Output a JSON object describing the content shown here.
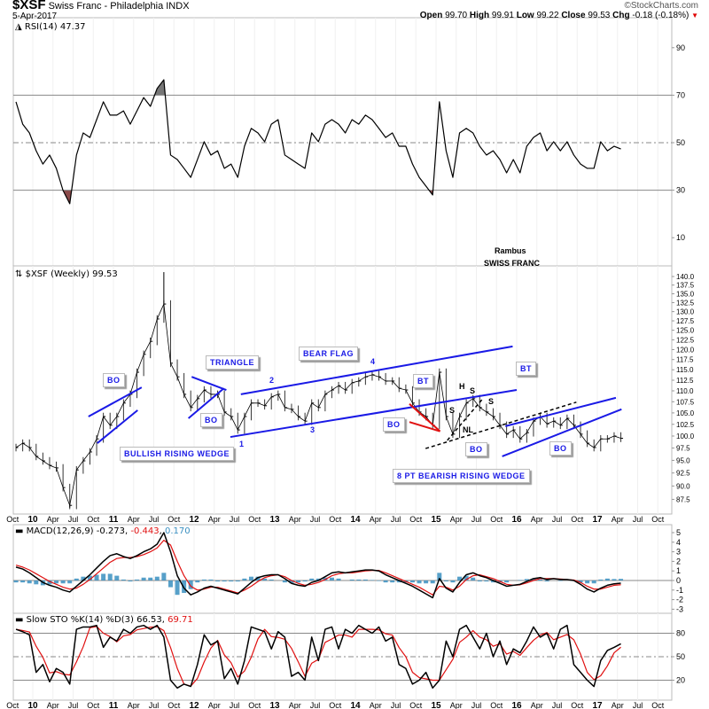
{
  "header": {
    "symbol": "$XSF",
    "name": "Swiss Franc - Philadelphia INDX",
    "date": "5-Apr-2017",
    "copyright": "©StockCharts.com",
    "open_label": "Open",
    "open": "99.70",
    "high_label": "High",
    "high": "99.91",
    "low_label": "Low",
    "low": "99.22",
    "close_label": "Close",
    "close": "99.53",
    "chg_label": "Chg",
    "chg": "-0.18 (-0.18%)",
    "down_color": "#e00000"
  },
  "annotations_text": {
    "author": "Rambus",
    "subject": "SWISS FRANC",
    "bo": "BO",
    "bt": "BT",
    "bullish_wedge": "BULLISH RISING WEDGE",
    "triangle": "TRIANGLE",
    "bear_flag": "BEAR FLAG",
    "bearish_wedge": "8 PT BEARISH RISING WEDGE",
    "p1": "1",
    "p2": "2",
    "p3": "3",
    "p4": "4",
    "h": "H",
    "s": "S",
    "nl": "NL"
  },
  "chart_data": {
    "type": "line",
    "start_month": "2009-10",
    "x_ticks": [
      {
        "label": "Oct",
        "date": "2009-10"
      },
      {
        "label": "10",
        "date": "2010-01"
      },
      {
        "label": "Apr",
        "date": "2010-04"
      },
      {
        "label": "Jul",
        "date": "2010-07"
      },
      {
        "label": "Oct",
        "date": "2010-10"
      },
      {
        "label": "11",
        "date": "2011-01"
      },
      {
        "label": "Apr",
        "date": "2011-04"
      },
      {
        "label": "Jul",
        "date": "2011-07"
      },
      {
        "label": "Oct",
        "date": "2011-10"
      },
      {
        "label": "12",
        "date": "2012-01"
      },
      {
        "label": "Apr",
        "date": "2012-04"
      },
      {
        "label": "Jul",
        "date": "2012-07"
      },
      {
        "label": "Oct",
        "date": "2012-10"
      },
      {
        "label": "13",
        "date": "2013-01"
      },
      {
        "label": "Apr",
        "date": "2013-04"
      },
      {
        "label": "Jul",
        "date": "2013-07"
      },
      {
        "label": "Oct",
        "date": "2013-10"
      },
      {
        "label": "14",
        "date": "2014-01"
      },
      {
        "label": "Apr",
        "date": "2014-04"
      },
      {
        "label": "Jul",
        "date": "2014-07"
      },
      {
        "label": "Oct",
        "date": "2014-10"
      },
      {
        "label": "15",
        "date": "2015-01"
      },
      {
        "label": "Apr",
        "date": "2015-04"
      },
      {
        "label": "Jul",
        "date": "2015-07"
      },
      {
        "label": "Oct",
        "date": "2015-10"
      },
      {
        "label": "16",
        "date": "2016-01"
      },
      {
        "label": "Apr",
        "date": "2016-04"
      },
      {
        "label": "Jul",
        "date": "2016-07"
      },
      {
        "label": "Oct",
        "date": "2016-10"
      },
      {
        "label": "17",
        "date": "2017-01"
      },
      {
        "label": "Apr",
        "date": "2017-04"
      },
      {
        "label": "Jul",
        "date": "2017-07"
      },
      {
        "label": "Oct",
        "date": "2017-10"
      }
    ],
    "rsi": {
      "legend": "RSI(14) 47.37",
      "y_ticks": [
        "90",
        "70",
        "50",
        "30",
        "10"
      ],
      "overbought": 70,
      "oversold": 30,
      "midline": 50,
      "values": [
        67.2,
        57.8,
        54.1,
        46.6,
        41,
        44.8,
        39.2,
        29.9,
        24.3,
        44.8,
        54.1,
        52.2,
        59.7,
        67.2,
        61.6,
        61.6,
        63.4,
        57.8,
        63.4,
        69,
        65.3,
        72.8,
        76.5,
        44.8,
        42.9,
        39.2,
        35.4,
        42.9,
        50.4,
        44.8,
        46.6,
        39.2,
        41,
        35.4,
        48.5,
        56,
        54.1,
        50.4,
        57.8,
        59.7,
        44.8,
        42.9,
        41,
        39.2,
        54.1,
        50.4,
        57.8,
        59.7,
        57.8,
        54.1,
        59.7,
        57.8,
        61.6,
        59.7,
        56,
        52.2,
        54.1,
        48.5,
        48.5,
        41,
        35.4,
        31.7,
        28,
        67.2,
        46.6,
        35.4,
        54.1,
        56,
        54.1,
        48.5,
        44.8,
        46.6,
        42.9,
        37.3,
        42.9,
        37.3,
        48.5,
        52.2,
        54.1,
        46.6,
        50.4,
        46.6,
        50.4,
        44.8,
        41,
        39.2,
        39.2,
        50.4,
        46.6,
        48.5,
        47.37
      ],
      "oversold_fill": "#8b4a4a",
      "overbought_fill": "#777777"
    },
    "price": {
      "legend": "$XSF (Weekly) 99.53",
      "scale": "log",
      "y_ticks": [
        "140.0",
        "137.5",
        "135.0",
        "132.5",
        "130.0",
        "127.5",
        "125.0",
        "122.5",
        "120.0",
        "117.5",
        "115.0",
        "112.5",
        "110.0",
        "107.5",
        "105.0",
        "102.5",
        "100.0",
        "97.5",
        "95.0",
        "92.5",
        "90.0",
        "87.5"
      ],
      "close": [
        97.6,
        98.5,
        97.6,
        95.8,
        94.9,
        94.0,
        93.5,
        89.7,
        86.4,
        93.1,
        94.9,
        96.7,
        99.4,
        104.2,
        102.3,
        104.2,
        107.2,
        109.2,
        114.4,
        118.8,
        122.1,
        128.0,
        132.1,
        116.6,
        113.3,
        109.2,
        106.2,
        108.2,
        110.2,
        109.2,
        109.2,
        105.2,
        104.2,
        101.3,
        104.2,
        107.2,
        107.2,
        106.6,
        108.6,
        109.2,
        106.2,
        105.8,
        104.2,
        103.2,
        107.2,
        106.2,
        109.2,
        110.2,
        111.2,
        110.2,
        111.9,
        112.3,
        113.3,
        113.8,
        113.3,
        112.3,
        112.3,
        110.6,
        110.2,
        107.2,
        105.2,
        104.2,
        102.3,
        114.4,
        104.2,
        100.4,
        104.2,
        107.2,
        108.2,
        106.2,
        105.2,
        104.2,
        102.3,
        100.4,
        101.3,
        99.4,
        100.7,
        103.2,
        104.2,
        102.6,
        103.2,
        102.3,
        103.8,
        102.3,
        100.4,
        98.5,
        97.6,
        99.4,
        99.4,
        100.0,
        99.53
      ],
      "period_high": 141.3,
      "period_low": 86.0,
      "trendlines": [
        {
          "color": "#1a1ae6",
          "style": "solid",
          "from": [
            2010.69,
            104.2
          ],
          "to": [
            2011.35,
            110.8
          ]
        },
        {
          "color": "#1a1ae6",
          "style": "solid",
          "from": [
            2010.8,
            98.5
          ],
          "to": [
            2011.3,
            105.6
          ]
        },
        {
          "color": "#1a1ae6",
          "style": "solid",
          "from": [
            2011.97,
            113.3
          ],
          "to": [
            2012.4,
            110.2
          ]
        },
        {
          "color": "#1a1ae6",
          "style": "solid",
          "from": [
            2011.93,
            103.8
          ],
          "to": [
            2012.37,
            110.6
          ]
        },
        {
          "color": "#1a1ae6",
          "style": "solid",
          "from": [
            2012.58,
            109.2
          ],
          "to": [
            2015.95,
            120.8
          ]
        },
        {
          "color": "#1a1ae6",
          "style": "solid",
          "from": [
            2012.45,
            99.8
          ],
          "to": [
            2016.0,
            110.2
          ]
        },
        {
          "color": "#e01010",
          "style": "solid",
          "from": [
            2014.67,
            107.0
          ],
          "to": [
            2015.05,
            101.0
          ]
        },
        {
          "color": "#e01010",
          "style": "solid",
          "from": [
            2014.67,
            103.0
          ],
          "to": [
            2015.05,
            101.0
          ]
        },
        {
          "color": "#000000",
          "style": "dashed",
          "from": [
            2014.87,
            97.4
          ],
          "to": [
            2016.74,
            107.4
          ]
        },
        {
          "color": "#000000",
          "style": "dashed",
          "from": [
            2015.14,
            99.1
          ],
          "to": [
            2015.58,
            108.2
          ]
        },
        {
          "color": "#1a1ae6",
          "style": "solid",
          "from": [
            2015.86,
            102.1
          ],
          "to": [
            2017.23,
            108.4
          ]
        },
        {
          "color": "#1a1ae6",
          "style": "solid",
          "from": [
            2015.82,
            95.8
          ],
          "to": [
            2017.3,
            105.8
          ]
        }
      ]
    },
    "macd": {
      "legend_name": "MACD(12,26,9)",
      "legend_macd": "-0.273",
      "legend_signal": "-0.443",
      "legend_hist": "0.170",
      "y_ticks": [
        "5",
        "4",
        "3",
        "2",
        "1",
        "0",
        "-1",
        "-2",
        "-3"
      ],
      "macd": [
        1.4,
        1.2,
        0.8,
        0.3,
        -0.2,
        -0.5,
        -0.7,
        -1.0,
        -1.2,
        -0.6,
        0.0,
        0.6,
        1.3,
        2.0,
        2.6,
        2.8,
        2.5,
        2.3,
        2.6,
        3.0,
        3.3,
        3.8,
        5.0,
        3.0,
        0.5,
        -0.8,
        -1.5,
        -1.2,
        -0.8,
        -0.6,
        -0.8,
        -1.0,
        -1.2,
        -1.4,
        -0.8,
        -0.2,
        0.3,
        0.5,
        0.6,
        0.6,
        0.2,
        -0.3,
        -0.5,
        -0.6,
        -0.2,
        0.0,
        0.4,
        0.8,
        0.9,
        0.8,
        0.9,
        1.0,
        1.1,
        1.1,
        1.0,
        0.6,
        0.3,
        0.0,
        -0.3,
        -0.6,
        -1.0,
        -1.4,
        -1.8,
        0.2,
        -0.8,
        -1.2,
        -0.2,
        0.6,
        0.8,
        0.5,
        0.3,
        0.0,
        -0.3,
        -0.6,
        -0.5,
        -0.4,
        -0.1,
        0.2,
        0.3,
        0.1,
        0.2,
        0.1,
        0.1,
        0.0,
        -0.4,
        -0.9,
        -1.2,
        -0.8,
        -0.5,
        -0.35,
        -0.273
      ],
      "signal": [
        1.6,
        1.4,
        1.1,
        0.7,
        0.3,
        -0.1,
        -0.4,
        -0.7,
        -0.9,
        -0.8,
        -0.4,
        0.1,
        0.7,
        1.3,
        1.9,
        2.3,
        2.4,
        2.4,
        2.5,
        2.7,
        3.0,
        3.4,
        4.2,
        3.7,
        2.0,
        0.5,
        -0.6,
        -1.0,
        -0.9,
        -0.7,
        -0.7,
        -0.9,
        -1.1,
        -1.3,
        -1.0,
        -0.6,
        -0.1,
        0.3,
        0.5,
        0.6,
        0.4,
        0.0,
        -0.3,
        -0.5,
        -0.4,
        -0.2,
        0.1,
        0.5,
        0.7,
        0.8,
        0.8,
        0.9,
        1.0,
        1.05,
        1.05,
        0.8,
        0.5,
        0.2,
        -0.1,
        -0.4,
        -0.7,
        -1.1,
        -1.5,
        -0.6,
        -0.7,
        -1.0,
        -0.6,
        0.1,
        0.5,
        0.6,
        0.4,
        0.2,
        -0.1,
        -0.4,
        -0.5,
        -0.45,
        -0.25,
        0.0,
        0.2,
        0.2,
        0.2,
        0.15,
        0.1,
        0.05,
        -0.2,
        -0.6,
        -0.9,
        -0.9,
        -0.7,
        -0.5,
        -0.443
      ],
      "macd_color": "#000000",
      "signal_color": "#e01010",
      "hist_color": "#3a8fc0"
    },
    "sto": {
      "legend_name": "Slow STO %K(14) %D(3)",
      "legend_k": "66.53",
      "legend_d": "69.71",
      "y_ticks": [
        "80",
        "50",
        "20"
      ],
      "k": [
        85,
        82,
        78,
        30,
        40,
        18,
        35,
        30,
        15,
        85,
        88,
        88,
        90,
        62,
        75,
        70,
        85,
        80,
        88,
        90,
        85,
        90,
        75,
        20,
        10,
        15,
        12,
        40,
        78,
        65,
        70,
        22,
        35,
        15,
        45,
        88,
        85,
        82,
        60,
        82,
        75,
        25,
        30,
        20,
        75,
        45,
        85,
        88,
        60,
        85,
        80,
        90,
        85,
        80,
        88,
        70,
        75,
        40,
        35,
        15,
        20,
        30,
        10,
        20,
        70,
        50,
        85,
        90,
        75,
        60,
        80,
        50,
        70,
        40,
        60,
        55,
        70,
        88,
        75,
        80,
        60,
        85,
        90,
        40,
        30,
        20,
        12,
        45,
        58,
        62,
        66.53
      ],
      "k_color": "#000000",
      "d_color": "#e01010"
    }
  }
}
